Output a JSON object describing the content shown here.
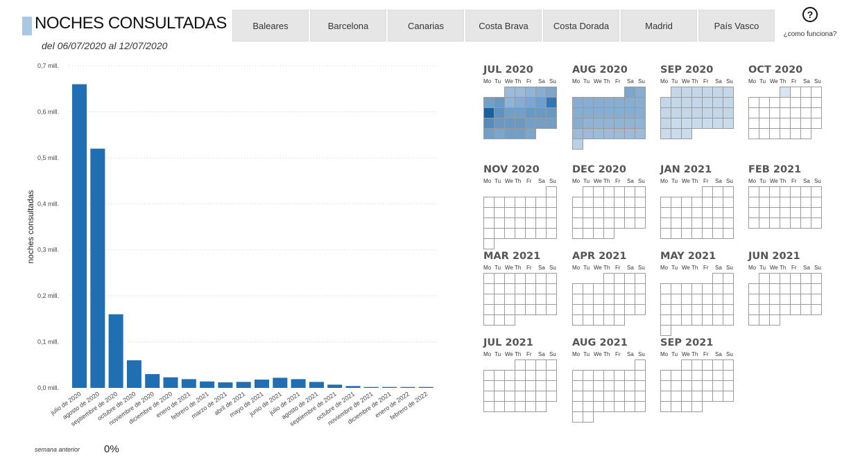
{
  "header": {
    "title": "NOCHES CONSULTADAS",
    "subtitle": "del 06/07/2020 al 12/07/2020"
  },
  "tabs": [
    "Baleares",
    "Barcelona",
    "Canarias",
    "Costa Brava",
    "Costa Dorada",
    "Madrid",
    "País Vasco"
  ],
  "help": {
    "icon": "question-circle-icon",
    "label": "¿como funciona?"
  },
  "footer": {
    "label": "semana anterior",
    "value": "0%"
  },
  "colors": {
    "bar": "#1f6fb2",
    "accent": "#a9c8e3",
    "cell_border": "#9a9a9a"
  },
  "chart_data": {
    "type": "bar",
    "ylabel": "noches consultadas",
    "xlabel": "",
    "ylim": [
      0,
      0.7
    ],
    "yticks": [
      0,
      0.1,
      0.2,
      0.3,
      0.4,
      0.5,
      0.6,
      0.7
    ],
    "ytick_labels": [
      "0,0 mill.",
      "0,1 mill.",
      "0,2 mill.",
      "0,3 mill.",
      "0,4 mill.",
      "0,5 mill.",
      "0,6 mill.",
      "0,7 mill."
    ],
    "grid": true,
    "categories": [
      "julio de 2020",
      "agosto de 2020",
      "septiembre de 2020",
      "octubre de 2020",
      "noviembre de 2020",
      "diciembre de 2020",
      "enero de 2021",
      "febrero de 2021",
      "marzo de 2021",
      "abril de 2021",
      "mayo de 2021",
      "junio de 2021",
      "julio de 2021",
      "agosto de 2021",
      "septiembre de 2021",
      "octubre de 2021",
      "noviembre de 2021",
      "diciembre de 2021",
      "enero de 2022",
      "febrero de 2022"
    ],
    "values": [
      0.66,
      0.52,
      0.16,
      0.06,
      0.03,
      0.023,
      0.019,
      0.014,
      0.012,
      0.013,
      0.018,
      0.022,
      0.019,
      0.013,
      0.007,
      0.004,
      0.002,
      0.002,
      0.002,
      0.002
    ]
  },
  "calendar": {
    "weekday_labels": [
      "Mo",
      "Tu",
      "We",
      "Th",
      "Fr",
      "Sa",
      "Su"
    ],
    "months": [
      {
        "label": "JUL 2020",
        "year": 2020,
        "month": 7,
        "intensity": [
          0.35,
          0.35,
          0.4,
          0.45,
          0.5,
          0.55,
          0.6,
          0.4,
          0.45,
          0.5,
          0.55,
          0.85,
          1.0,
          0.65,
          0.55,
          0.55,
          0.6,
          0.6,
          0.6,
          0.7,
          0.6,
          0.6,
          0.6,
          0.55,
          0.55,
          0.55,
          0.55,
          0.5,
          0.55,
          0.55,
          0.5
        ]
      },
      {
        "label": "AUG 2020",
        "year": 2020,
        "month": 8,
        "intensity": [
          0.5,
          0.45,
          0.45,
          0.45,
          0.45,
          0.45,
          0.45,
          0.45,
          0.45,
          0.45,
          0.45,
          0.45,
          0.45,
          0.45,
          0.45,
          0.45,
          0.45,
          0.4,
          0.4,
          0.4,
          0.4,
          0.4,
          0.4,
          0.35,
          0.35,
          0.35,
          0.35,
          0.35,
          0.35,
          0.35,
          0.2
        ]
      },
      {
        "label": "SEP 2020",
        "year": 2020,
        "month": 9,
        "intensity": [
          0.15,
          0.15,
          0.15,
          0.15,
          0.15,
          0.15,
          0.15,
          0.15,
          0.15,
          0.15,
          0.15,
          0.15,
          0.15,
          0.15,
          0.15,
          0.15,
          0.15,
          0.15,
          0.15,
          0.15,
          0.15,
          0.12,
          0.12,
          0.12,
          0.12,
          0.12,
          0.12,
          0.12,
          0.12,
          0.12
        ]
      },
      {
        "label": "OCT 2020",
        "year": 2020,
        "month": 10,
        "intensity": [
          0.05
        ]
      },
      {
        "label": "NOV 2020",
        "year": 2020,
        "month": 11,
        "intensity": []
      },
      {
        "label": "DEC 2020",
        "year": 2020,
        "month": 12,
        "intensity": []
      },
      {
        "label": "JAN 2021",
        "year": 2021,
        "month": 1,
        "intensity": []
      },
      {
        "label": "FEB 2021",
        "year": 2021,
        "month": 2,
        "intensity": []
      },
      {
        "label": "MAR 2021",
        "year": 2021,
        "month": 3,
        "intensity": []
      },
      {
        "label": "APR 2021",
        "year": 2021,
        "month": 4,
        "intensity": []
      },
      {
        "label": "MAY 2021",
        "year": 2021,
        "month": 5,
        "intensity": []
      },
      {
        "label": "JUN 2021",
        "year": 2021,
        "month": 6,
        "intensity": []
      },
      {
        "label": "JUL 2021",
        "year": 2021,
        "month": 7,
        "intensity": []
      },
      {
        "label": "AUG 2021",
        "year": 2021,
        "month": 8,
        "intensity": []
      },
      {
        "label": "SEP 2021",
        "year": 2021,
        "month": 9,
        "intensity": []
      }
    ]
  }
}
